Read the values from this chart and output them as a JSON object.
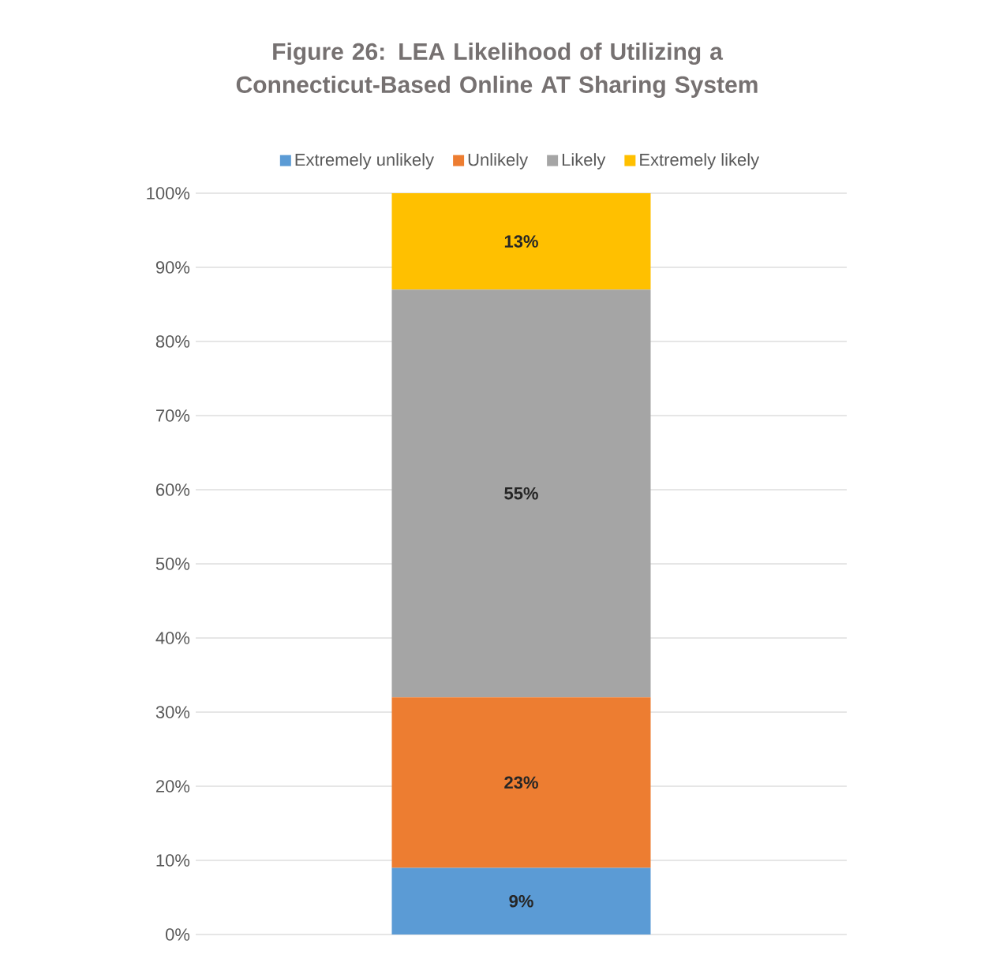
{
  "chart_data": {
    "type": "bar",
    "title": "Figure 26: LEA Likelihood of Utilizing a Connecticut-Based Online AT Sharing System",
    "categories": [
      null
    ],
    "stacked": true,
    "series": [
      {
        "name": "Extremely unlikely",
        "color": "#5b9bd5",
        "values": [
          9
        ],
        "value_labels": [
          "9%"
        ]
      },
      {
        "name": "Unlikely",
        "color": "#ed7d31",
        "values": [
          23
        ],
        "value_labels": [
          "23%"
        ]
      },
      {
        "name": "Likely",
        "color": "#a5a5a5",
        "values": [
          55
        ],
        "value_labels": [
          "55%"
        ]
      },
      {
        "name": "Extremely likely",
        "color": "#ffc000",
        "values": [
          13
        ],
        "value_labels": [
          "13%"
        ]
      }
    ],
    "ylim": [
      0,
      100
    ],
    "yticks": [
      {
        "value": 0,
        "label": "0%"
      },
      {
        "value": 10,
        "label": "10%"
      },
      {
        "value": 20,
        "label": "20%"
      },
      {
        "value": 30,
        "label": "30%"
      },
      {
        "value": 40,
        "label": "40%"
      },
      {
        "value": 50,
        "label": "50%"
      },
      {
        "value": 60,
        "label": "60%"
      },
      {
        "value": 70,
        "label": "70%"
      },
      {
        "value": 80,
        "label": "80%"
      },
      {
        "value": 90,
        "label": "90%"
      },
      {
        "value": 100,
        "label": "100%"
      }
    ],
    "grid": "y",
    "legend": "top"
  }
}
